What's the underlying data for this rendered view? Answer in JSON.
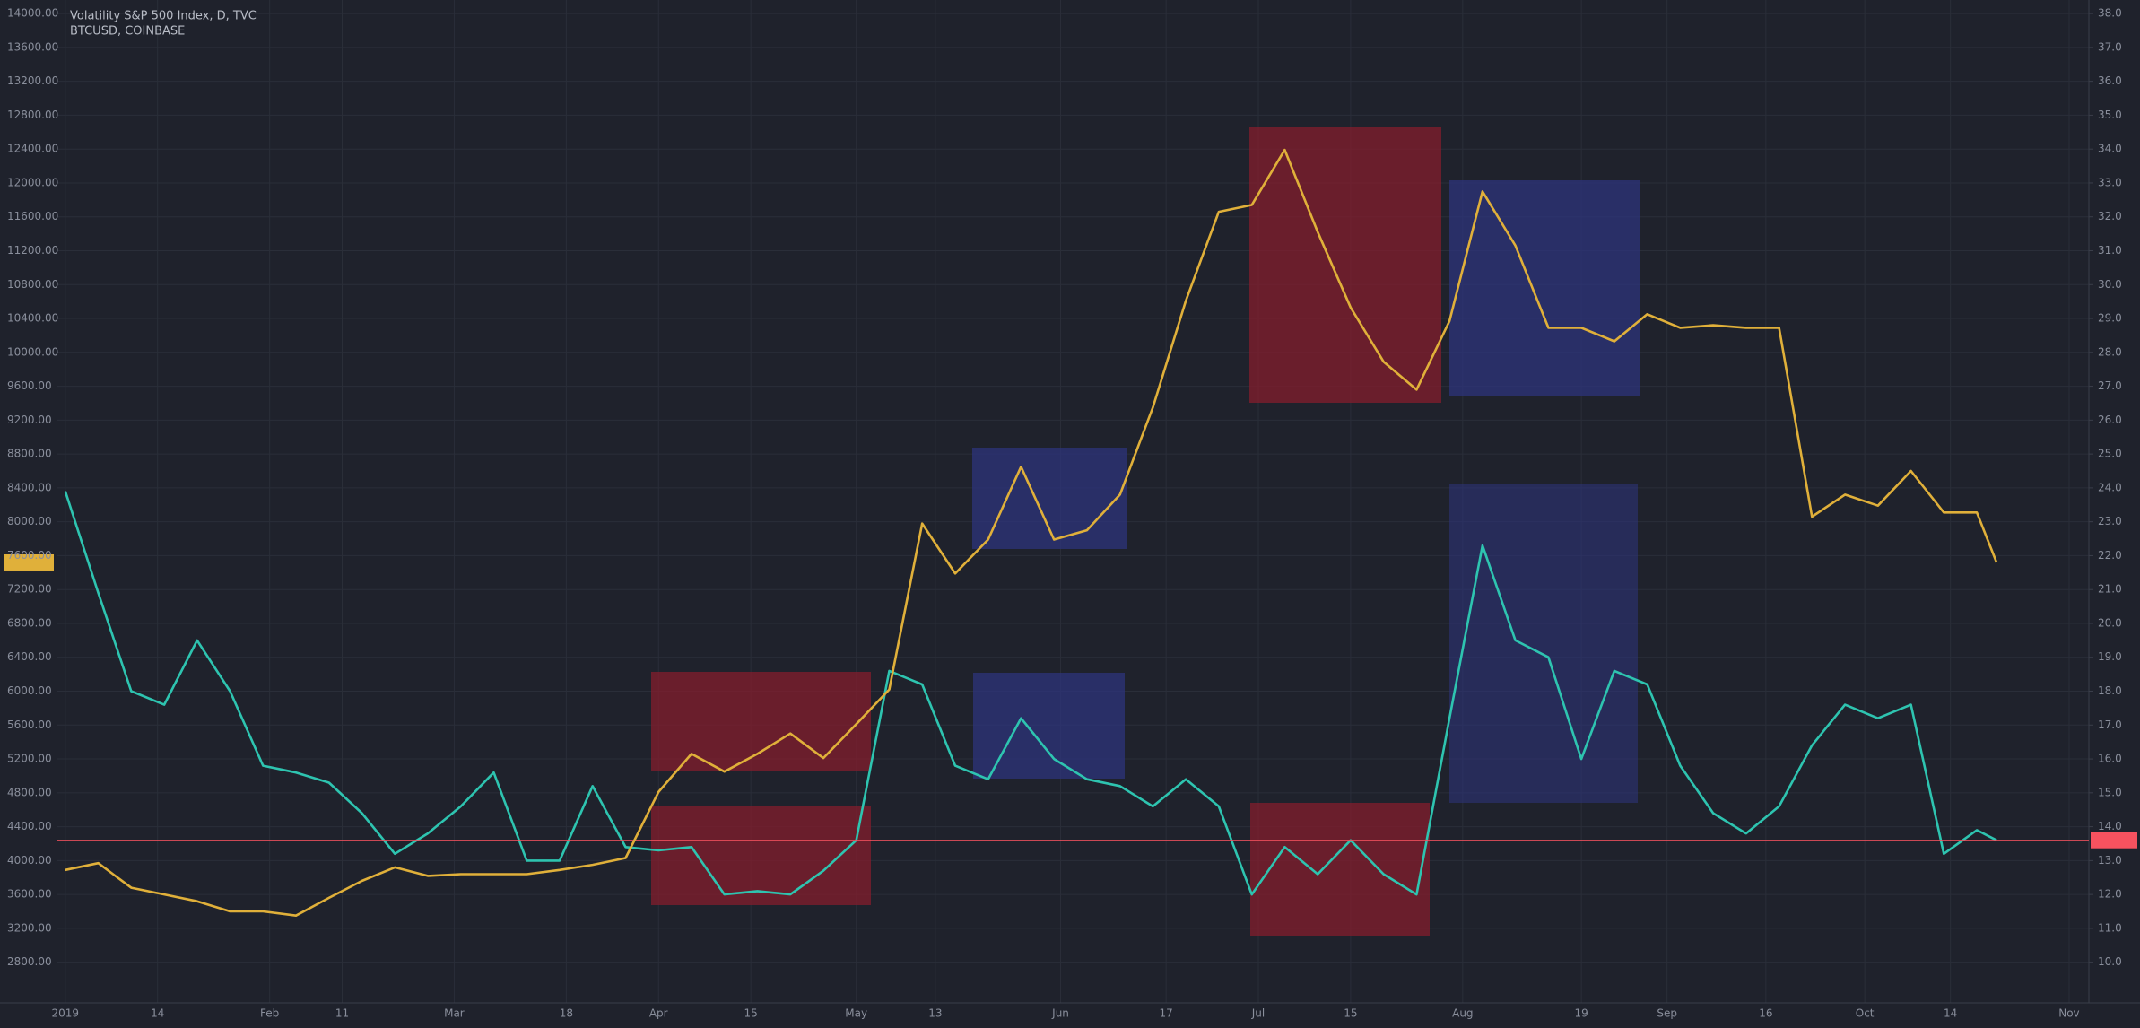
{
  "chart_data": {
    "type": "line",
    "x": [
      0,
      5,
      10,
      15,
      20,
      25,
      30,
      35,
      40,
      45,
      50,
      55,
      60,
      65,
      70,
      75,
      80,
      85,
      90,
      95,
      100,
      105,
      110,
      115,
      120,
      125,
      130,
      135,
      140,
      145,
      150,
      155,
      160,
      165,
      170,
      175,
      180,
      185,
      190,
      195,
      200,
      205,
      210,
      215,
      220,
      225,
      230,
      235,
      240,
      245,
      250,
      255,
      260,
      265,
      270,
      275,
      280,
      285,
      290,
      293
    ],
    "xlim": [
      -1.2,
      307
    ],
    "xticks": [
      {
        "value": 0,
        "label": "2019"
      },
      {
        "value": 14,
        "label": "14"
      },
      {
        "value": 31,
        "label": "Feb"
      },
      {
        "value": 42,
        "label": "11"
      },
      {
        "value": 59,
        "label": "Mar"
      },
      {
        "value": 76,
        "label": "18"
      },
      {
        "value": 90,
        "label": "Apr"
      },
      {
        "value": 104,
        "label": "15"
      },
      {
        "value": 120,
        "label": "May"
      },
      {
        "value": 132,
        "label": "13"
      },
      {
        "value": 151,
        "label": "Jun"
      },
      {
        "value": 167,
        "label": "17"
      },
      {
        "value": 181,
        "label": "Jul"
      },
      {
        "value": 195,
        "label": "15"
      },
      {
        "value": 212,
        "label": "Aug"
      },
      {
        "value": 230,
        "label": "19"
      },
      {
        "value": 243,
        "label": "Sep"
      },
      {
        "value": 258,
        "label": "16"
      },
      {
        "value": 273,
        "label": "Oct"
      },
      {
        "value": 286,
        "label": "14"
      },
      {
        "value": 304,
        "label": "Nov"
      }
    ],
    "ylim": [
      2320,
      14160
    ],
    "yticks": [
      {
        "value": 14000,
        "label": "14000.00"
      },
      {
        "value": 13600,
        "label": "13600.00"
      },
      {
        "value": 13200,
        "label": "13200.00"
      },
      {
        "value": 12800,
        "label": "12800.00"
      },
      {
        "value": 12400,
        "label": "12400.00"
      },
      {
        "value": 12000,
        "label": "12000.00"
      },
      {
        "value": 11600,
        "label": "11600.00"
      },
      {
        "value": 11200,
        "label": "11200.00"
      },
      {
        "value": 10800,
        "label": "10800.00"
      },
      {
        "value": 10400,
        "label": "10400.00"
      },
      {
        "value": 10000,
        "label": "10000.00"
      },
      {
        "value": 9600,
        "label": "9600.00"
      },
      {
        "value": 9200,
        "label": "9200.00"
      },
      {
        "value": 8800,
        "label": "8800.00"
      },
      {
        "value": 8400,
        "label": "8400.00"
      },
      {
        "value": 8000,
        "label": "8000.00"
      },
      {
        "value": 7600,
        "label": "7600.00"
      },
      {
        "value": 7200,
        "label": "7200.00"
      },
      {
        "value": 6800,
        "label": "6800.00"
      },
      {
        "value": 6400,
        "label": "6400.00"
      },
      {
        "value": 6000,
        "label": "6000.00"
      },
      {
        "value": 5600,
        "label": "5600.00"
      },
      {
        "value": 5200,
        "label": "5200.00"
      },
      {
        "value": 4800,
        "label": "4800.00"
      },
      {
        "value": 4400,
        "label": "4400.00"
      },
      {
        "value": 4000,
        "label": "4000.00"
      },
      {
        "value": 3600,
        "label": "3600.00"
      },
      {
        "value": 3200,
        "label": "3200.00"
      },
      {
        "value": 2800,
        "label": "2800.00"
      }
    ],
    "y2lim": [
      8.8,
      38.4
    ],
    "y2ticks": [
      {
        "value": 38,
        "label": "38.0"
      },
      {
        "value": 37,
        "label": "37.0"
      },
      {
        "value": 36,
        "label": "36.0"
      },
      {
        "value": 35,
        "label": "35.0"
      },
      {
        "value": 34,
        "label": "34.0"
      },
      {
        "value": 33,
        "label": "33.0"
      },
      {
        "value": 32,
        "label": "32.0"
      },
      {
        "value": 31,
        "label": "31.0"
      },
      {
        "value": 30,
        "label": "30.0"
      },
      {
        "value": 29,
        "label": "29.0"
      },
      {
        "value": 28,
        "label": "28.0"
      },
      {
        "value": 27,
        "label": "27.0"
      },
      {
        "value": 26,
        "label": "26.0"
      },
      {
        "value": 25,
        "label": "25.0"
      },
      {
        "value": 24,
        "label": "24.0"
      },
      {
        "value": 23,
        "label": "23.0"
      },
      {
        "value": 22,
        "label": "22.0"
      },
      {
        "value": 21,
        "label": "21.0"
      },
      {
        "value": 20,
        "label": "20.0"
      },
      {
        "value": 19,
        "label": "19.0"
      },
      {
        "value": 18,
        "label": "18.0"
      },
      {
        "value": 17,
        "label": "17.0"
      },
      {
        "value": 16,
        "label": "16.0"
      },
      {
        "value": 15,
        "label": "15.0"
      },
      {
        "value": 14,
        "label": "14.0"
      },
      {
        "value": 13,
        "label": "13.0"
      },
      {
        "value": 12,
        "label": "12.0"
      },
      {
        "value": 11,
        "label": "11.0"
      },
      {
        "value": 10,
        "label": "10.0"
      }
    ],
    "grid": true,
    "series": [
      {
        "name": "Volatility S&P 500 Index, D, TVC",
        "color": "#2ec4b0",
        "axis": "y2",
        "values": [
          23.9,
          20.9,
          18.0,
          17.6,
          19.5,
          18.0,
          15.8,
          15.6,
          15.3,
          14.4,
          13.2,
          13.8,
          14.6,
          15.6,
          13.0,
          13.0,
          15.2,
          13.4,
          13.3,
          13.4,
          12.0,
          12.1,
          12.0,
          12.7,
          13.6,
          18.6,
          18.2,
          15.8,
          15.4,
          17.2,
          16.0,
          15.4,
          15.2,
          14.6,
          15.4,
          14.6,
          12.0,
          13.4,
          12.6,
          13.6,
          12.6,
          12.0,
          17.2,
          22.3,
          19.5,
          19.0,
          16.0,
          18.6,
          18.2,
          15.8,
          14.4,
          13.8,
          14.6,
          16.4,
          17.6,
          17.2,
          17.6,
          13.2,
          13.9,
          13.6
        ]
      },
      {
        "name": "BTCUSD, COINBASE",
        "color": "#e0b03a",
        "values": [
          3890,
          3970,
          3680,
          3600,
          3520,
          3400,
          3400,
          3350,
          3560,
          3760,
          3920,
          3820,
          3840,
          3840,
          3840,
          3890,
          3950,
          4030,
          4810,
          5260,
          5050,
          5260,
          5500,
          5210,
          5610,
          6020,
          7980,
          7390,
          7790,
          8650,
          7790,
          7900,
          8320,
          9350,
          10610,
          11660,
          11740,
          12390,
          11420,
          10530,
          9890,
          9560,
          10370,
          11900,
          11260,
          10290,
          10290,
          10130,
          10450,
          10290,
          10320,
          10290,
          10290,
          8060,
          8320,
          8190,
          8600,
          8110,
          8110,
          7520
        ]
      }
    ]
  }
}
